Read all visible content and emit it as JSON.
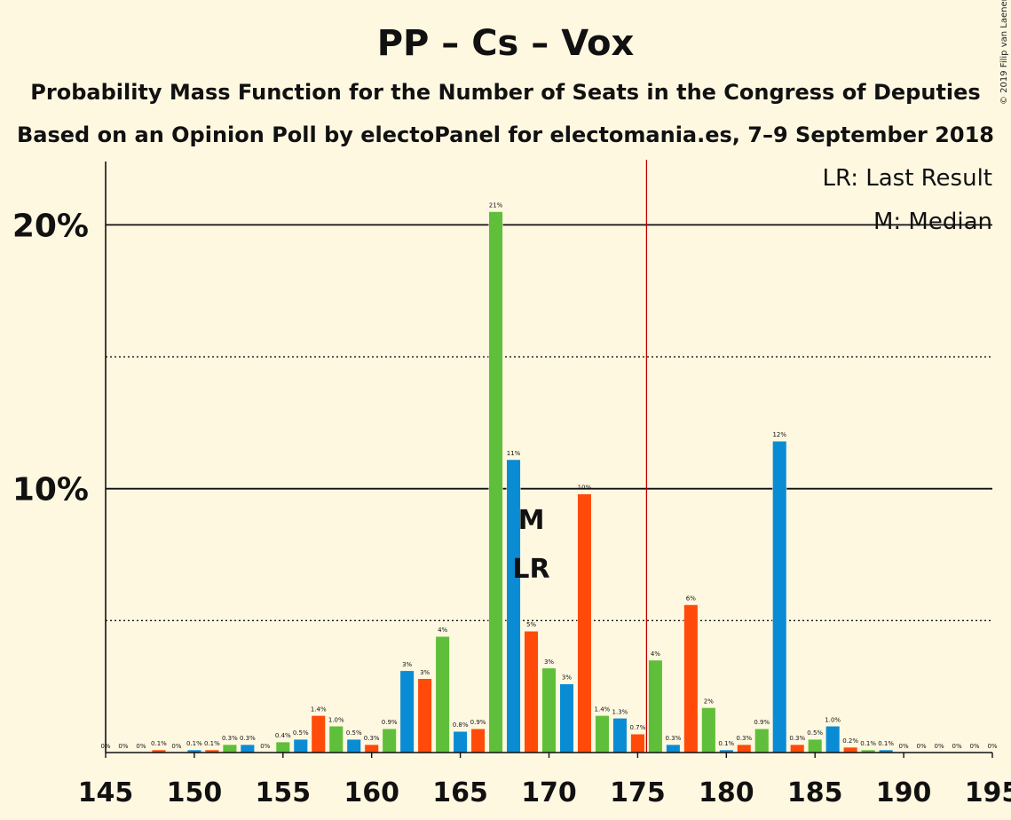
{
  "title": "PP – Cs – Vox",
  "subtitle1": "Probability Mass Function for the Number of Seats in the Congress of Deputies",
  "subtitle2": "Based on an Opinion Poll by electoPanel for electomania.es, 7–9 September 2018",
  "copyright": "© 2019 Filip van Laenen",
  "legend": {
    "lr": "LR: Last Result",
    "m": "M: Median"
  },
  "colors": {
    "green": "#5FBF3A",
    "blue": "#0A8CD4",
    "orange": "#FF4A0A",
    "majority_line": "#C00000",
    "background": "#FFF8E1"
  },
  "chart_data": {
    "type": "bar",
    "x_range": [
      145,
      195
    ],
    "y_range": [
      0,
      22.3
    ],
    "y_ticks": [
      {
        "value": 10,
        "label": "10%"
      },
      {
        "value": 20,
        "label": "20%"
      }
    ],
    "x_ticks": [
      145,
      150,
      155,
      160,
      165,
      170,
      175,
      180,
      185,
      190,
      195
    ],
    "majority_line": 176,
    "median": 169,
    "last_result": 169,
    "median_label": "M",
    "last_result_label": "LR",
    "bars": [
      {
        "x": 145,
        "value": 0,
        "label": "0%",
        "color": "green"
      },
      {
        "x": 146,
        "value": 0,
        "label": "0%",
        "color": "blue"
      },
      {
        "x": 147,
        "value": 0,
        "label": "0%",
        "color": "orange"
      },
      {
        "x": 148,
        "value": 0.1,
        "label": "0.1%",
        "color": "orange"
      },
      {
        "x": 149,
        "value": 0,
        "label": "0%",
        "color": "green"
      },
      {
        "x": 150,
        "value": 0.1,
        "label": "0.1%",
        "color": "blue"
      },
      {
        "x": 151,
        "value": 0.1,
        "label": "0.1%",
        "color": "orange"
      },
      {
        "x": 152,
        "value": 0.3,
        "label": "0.3%",
        "color": "green"
      },
      {
        "x": 153,
        "value": 0.3,
        "label": "0.3%",
        "color": "blue"
      },
      {
        "x": 154,
        "value": 0,
        "label": "0%",
        "color": "orange"
      },
      {
        "x": 155,
        "value": 0.4,
        "label": "0.4%",
        "color": "green"
      },
      {
        "x": 156,
        "value": 0.5,
        "label": "0.5%",
        "color": "blue"
      },
      {
        "x": 157,
        "value": 1.4,
        "label": "1.4%",
        "color": "orange"
      },
      {
        "x": 158,
        "value": 1.0,
        "label": "1.0%",
        "color": "green"
      },
      {
        "x": 159,
        "value": 0.5,
        "label": "0.5%",
        "color": "blue"
      },
      {
        "x": 160,
        "value": 0.3,
        "label": "0.3%",
        "color": "orange"
      },
      {
        "x": 161,
        "value": 0.9,
        "label": "0.9%",
        "color": "green"
      },
      {
        "x": 162,
        "value": 3.1,
        "label": "3%",
        "color": "blue"
      },
      {
        "x": 163,
        "value": 2.8,
        "label": "3%",
        "color": "orange"
      },
      {
        "x": 164,
        "value": 4.4,
        "label": "4%",
        "color": "green"
      },
      {
        "x": 165,
        "value": 0.8,
        "label": "0.8%",
        "color": "blue"
      },
      {
        "x": 166,
        "value": 0.9,
        "label": "0.9%",
        "color": "orange"
      },
      {
        "x": 167,
        "value": 20.5,
        "label": "21%",
        "color": "green"
      },
      {
        "x": 168,
        "value": 11.1,
        "label": "11%",
        "color": "blue"
      },
      {
        "x": 169,
        "value": 4.6,
        "label": "5%",
        "color": "orange"
      },
      {
        "x": 170,
        "value": 3.2,
        "label": "3%",
        "color": "green"
      },
      {
        "x": 171,
        "value": 2.6,
        "label": "3%",
        "color": "blue"
      },
      {
        "x": 172,
        "value": 9.8,
        "label": "10%",
        "color": "orange"
      },
      {
        "x": 173,
        "value": 1.4,
        "label": "1.4%",
        "color": "green"
      },
      {
        "x": 174,
        "value": 1.3,
        "label": "1.3%",
        "color": "blue"
      },
      {
        "x": 175,
        "value": 0.7,
        "label": "0.7%",
        "color": "orange"
      },
      {
        "x": 176,
        "value": 3.5,
        "label": "4%",
        "color": "green"
      },
      {
        "x": 177,
        "value": 0.3,
        "label": "0.3%",
        "color": "blue"
      },
      {
        "x": 178,
        "value": 5.6,
        "label": "6%",
        "color": "orange"
      },
      {
        "x": 179,
        "value": 1.7,
        "label": "2%",
        "color": "green"
      },
      {
        "x": 180,
        "value": 0.1,
        "label": "0.1%",
        "color": "blue"
      },
      {
        "x": 181,
        "value": 0.3,
        "label": "0.3%",
        "color": "orange"
      },
      {
        "x": 182,
        "value": 0.9,
        "label": "0.9%",
        "color": "green"
      },
      {
        "x": 183,
        "value": 11.8,
        "label": "12%",
        "color": "blue"
      },
      {
        "x": 184,
        "value": 0.3,
        "label": "0.3%",
        "color": "orange"
      },
      {
        "x": 185,
        "value": 0.5,
        "label": "0.5%",
        "color": "green"
      },
      {
        "x": 186,
        "value": 1.0,
        "label": "1.0%",
        "color": "blue"
      },
      {
        "x": 187,
        "value": 0.2,
        "label": "0.2%",
        "color": "orange"
      },
      {
        "x": 188,
        "value": 0.1,
        "label": "0.1%",
        "color": "green"
      },
      {
        "x": 189,
        "value": 0.1,
        "label": "0.1%",
        "color": "blue"
      },
      {
        "x": 190,
        "value": 0,
        "label": "0%",
        "color": "orange"
      },
      {
        "x": 191,
        "value": 0,
        "label": "0%",
        "color": "green"
      },
      {
        "x": 192,
        "value": 0,
        "label": "0%",
        "color": "blue"
      },
      {
        "x": 193,
        "value": 0,
        "label": "0%",
        "color": "orange"
      },
      {
        "x": 194,
        "value": 0,
        "label": "0%",
        "color": "green"
      },
      {
        "x": 195,
        "value": 0,
        "label": "0%",
        "color": "blue"
      }
    ]
  }
}
